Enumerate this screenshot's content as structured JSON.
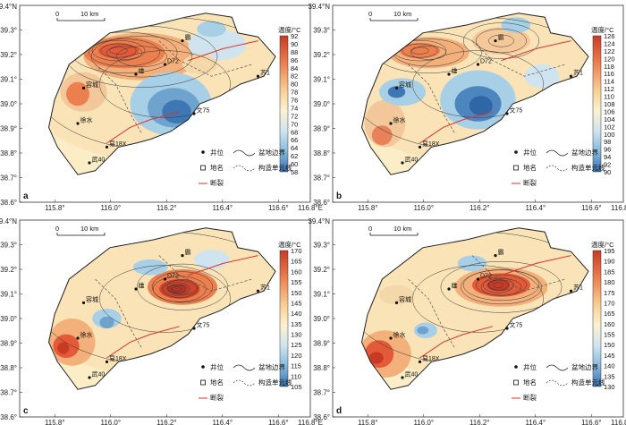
{
  "panels": [
    {
      "letter": "a",
      "legend_title": "温度/°C",
      "scale_text": [
        "90",
        "88",
        "86",
        "84",
        "82",
        "80",
        "78",
        "76",
        "74",
        "72",
        "70",
        "68",
        "66",
        "64",
        "62",
        "60",
        "58"
      ],
      "scale_max": 92,
      "scale_top": "92"
    },
    {
      "letter": "b",
      "legend_title": "温度/°C",
      "scale_text": [
        "124",
        "122",
        "120",
        "118",
        "116",
        "114",
        "112",
        "110",
        "108",
        "106",
        "104",
        "102",
        "100",
        "98",
        "96",
        "94",
        "92",
        "90"
      ],
      "scale_top": "126"
    },
    {
      "letter": "c",
      "legend_title": "温度/°C",
      "scale_text": [
        "165",
        "160",
        "155",
        "150",
        "145",
        "140",
        "135",
        "130",
        "125",
        "120",
        "115",
        "110",
        "105"
      ],
      "scale_top": "170"
    },
    {
      "letter": "d",
      "legend_title": "温度/°C",
      "scale_text": [
        "190",
        "185",
        "180",
        "175",
        "170",
        "165",
        "160",
        "155",
        "150",
        "145",
        "140",
        "135",
        "130"
      ],
      "scale_top": "195"
    }
  ],
  "axes": {
    "lat_top": "39.4°N",
    "lat_ticks": [
      "39.3°",
      "39.2°",
      "39.1°",
      "39.0°",
      "38.9°",
      "38.8°",
      "38.7°",
      "38.6°"
    ],
    "lon_ticks": [
      "115.8°",
      "116.0°",
      "116.2°",
      "116.4°",
      "116.6°"
    ],
    "lon_end": "116.8°E"
  },
  "scalebar": {
    "zero": "0",
    "dist": "10 km"
  },
  "legend": {
    "well": "井位",
    "basin_boundary": "盆地边界",
    "place_name": "地名",
    "tectonic_line": "构造单元线",
    "fault": "断裂"
  },
  "places": {
    "xiong": "雄",
    "ba": "霸",
    "su1": "苏1",
    "d72": "D72",
    "wen75": "文75",
    "rong": "容城",
    "xushui": "徐水",
    "yi18x": "易18X",
    "wu40": "武40"
  },
  "colors": {
    "warm_max": "#d2452a",
    "warm": "#f0a060",
    "mid": "#fbeec6",
    "cool": "#a7cfe6",
    "cool_min": "#3b78b4",
    "fault": "#e0322b"
  }
}
